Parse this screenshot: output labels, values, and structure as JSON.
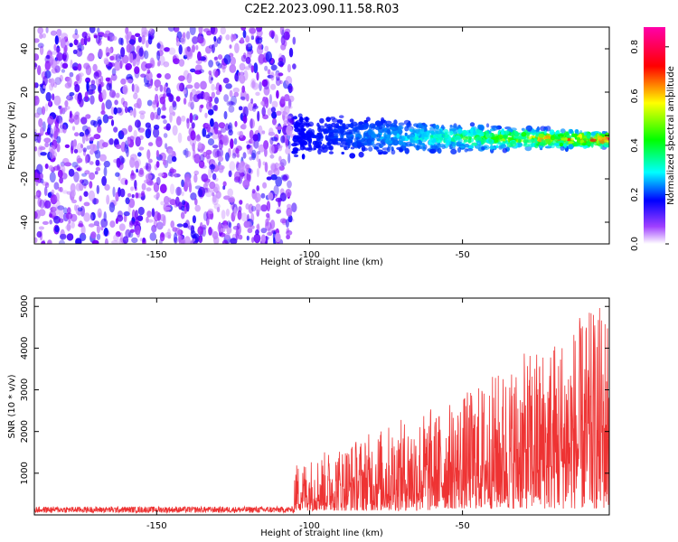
{
  "title": "C2E2.2023.090.11.58.R03",
  "chart_data": [
    {
      "type": "heatmap",
      "xlabel": "Height of straight line (km)",
      "ylabel": "Frequency (Hz)",
      "xlim": [
        -190,
        -2
      ],
      "ylim": [
        -50,
        50
      ],
      "xticks": [
        -150,
        -100,
        -50
      ],
      "yticks": [
        -40,
        -20,
        0,
        20,
        40
      ],
      "colorbar": {
        "label": "Normalized spectral amplitude",
        "range": [
          0,
          0.88
        ],
        "ticks": [
          0.0,
          0.2,
          0.4,
          0.6,
          0.8
        ],
        "colors": [
          "#ffffff",
          "#8000ff",
          "#0000ff",
          "#00ffff",
          "#00ff00",
          "#ffff00",
          "#ff0000",
          "#ff00ff"
        ]
      },
      "noise_region": {
        "x": [
          -190,
          -105
        ],
        "y": [
          -50,
          50
        ],
        "amplitude": [
          0.05,
          0.25
        ]
      },
      "signal_band": {
        "x": [
          -105,
          -2
        ],
        "center_hz": [
          0,
          -2
        ],
        "halfwidth_hz": [
          8,
          3
        ],
        "amplitude": [
          0.25,
          0.8
        ]
      }
    },
    {
      "type": "line",
      "xlabel": "Height of straight line (km)",
      "ylabel": "SNR (10 * v/v)",
      "xlim": [
        -190,
        -2
      ],
      "ylim": [
        0,
        5200
      ],
      "xticks": [
        -150,
        -100,
        -50
      ],
      "yticks": [
        1000,
        2000,
        3000,
        4000,
        5000
      ],
      "color": "#ee3333",
      "segments": [
        {
          "x": [
            -190,
            -105
          ],
          "baseline": 150,
          "noise": [
            50,
            300
          ]
        },
        {
          "x": [
            -105,
            -60
          ],
          "baseline": 400,
          "noise": [
            100,
            2600
          ]
        },
        {
          "x": [
            -60,
            -2
          ],
          "baseline": 600,
          "noise": [
            150,
            5200
          ]
        }
      ]
    }
  ]
}
